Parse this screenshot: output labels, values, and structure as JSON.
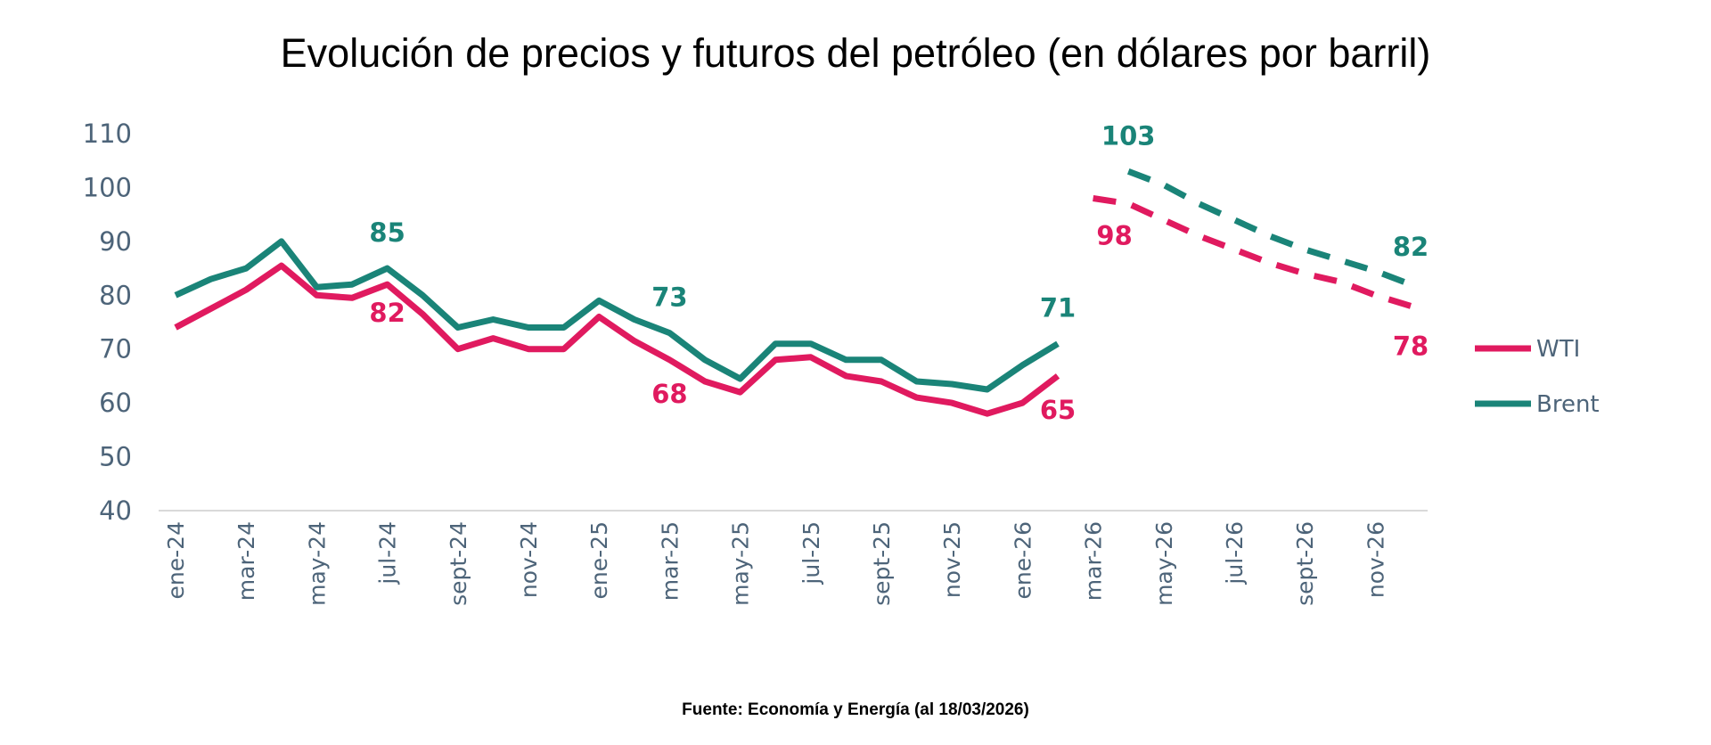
{
  "chart_data": {
    "type": "line",
    "title": "Evolución de precios y futuros del petróleo (en dólares por barril)",
    "source": "Fuente: Economía y Energía (al 18/03/2026)",
    "xlabel": "",
    "ylabel": "",
    "ylim": [
      40,
      110
    ],
    "yticks": [
      40,
      50,
      60,
      70,
      80,
      90,
      100,
      110
    ],
    "grid": false,
    "legend_position": "right",
    "months": [
      "ene-24",
      "feb-24",
      "mar-24",
      "abr-24",
      "may-24",
      "jun-24",
      "jul-24",
      "ago-24",
      "sept-24",
      "oct-24",
      "nov-24",
      "dic-24",
      "ene-25",
      "feb-25",
      "mar-25",
      "abr-25",
      "may-25",
      "jun-25",
      "jul-25",
      "ago-25",
      "sept-25",
      "oct-25",
      "nov-25",
      "dic-25",
      "ene-26",
      "feb-26",
      "mar-26",
      "abr-26",
      "may-26",
      "jun-26",
      "jul-26",
      "ago-26",
      "sept-26",
      "oct-26",
      "nov-26",
      "dic-26"
    ],
    "xtick_labels": [
      "ene-24",
      "mar-24",
      "may-24",
      "jul-24",
      "sept-24",
      "nov-24",
      "ene-25",
      "mar-25",
      "may-25",
      "jul-25",
      "sept-25",
      "nov-25",
      "ene-26",
      "mar-26",
      "may-26",
      "jul-26",
      "sept-26",
      "nov-26"
    ],
    "series": [
      {
        "name": "WTI",
        "color": "#e01a5f",
        "historical": [
          74,
          77.5,
          81,
          85.5,
          80,
          79.5,
          82,
          76.5,
          70,
          72,
          70,
          70,
          76,
          71.5,
          68,
          64,
          62,
          68,
          68.5,
          65,
          64,
          61,
          60,
          58,
          60,
          65,
          null,
          null,
          null,
          null,
          null,
          null,
          null,
          null,
          null,
          null
        ],
        "futures": [
          null,
          null,
          null,
          null,
          null,
          null,
          null,
          null,
          null,
          null,
          null,
          null,
          null,
          null,
          null,
          null,
          null,
          null,
          null,
          null,
          null,
          null,
          null,
          null,
          null,
          null,
          98,
          97,
          94,
          91,
          88.5,
          86,
          84,
          82.5,
          80,
          78
        ],
        "data_labels": [
          {
            "month": "jul-24",
            "text": "82"
          },
          {
            "month": "mar-25",
            "text": "68"
          },
          {
            "month": "feb-26",
            "text": "65"
          },
          {
            "month": "mar-26",
            "text": "98"
          },
          {
            "month": "dic-26",
            "text": "78"
          }
        ]
      },
      {
        "name": "Brent",
        "color": "#1a8478",
        "historical": [
          80,
          83,
          85,
          90,
          81.5,
          82,
          85,
          80,
          74,
          75.5,
          74,
          74,
          79,
          75.5,
          73,
          68,
          64.5,
          71,
          71,
          68,
          68,
          64,
          63.5,
          62.5,
          67,
          71,
          null,
          null,
          null,
          null,
          null,
          null,
          null,
          null,
          null,
          null
        ],
        "futures": [
          null,
          null,
          null,
          null,
          null,
          null,
          null,
          null,
          null,
          null,
          null,
          null,
          null,
          null,
          null,
          null,
          null,
          null,
          null,
          null,
          null,
          null,
          null,
          null,
          null,
          null,
          null,
          103,
          100.5,
          97,
          94,
          91,
          88.5,
          86.5,
          84.5,
          82
        ],
        "data_labels": [
          {
            "month": "jul-24",
            "text": "85"
          },
          {
            "month": "mar-25",
            "text": "73"
          },
          {
            "month": "feb-26",
            "text": "71"
          },
          {
            "month": "abr-26",
            "text": "103"
          },
          {
            "month": "dic-26",
            "text": "82"
          }
        ]
      }
    ]
  }
}
